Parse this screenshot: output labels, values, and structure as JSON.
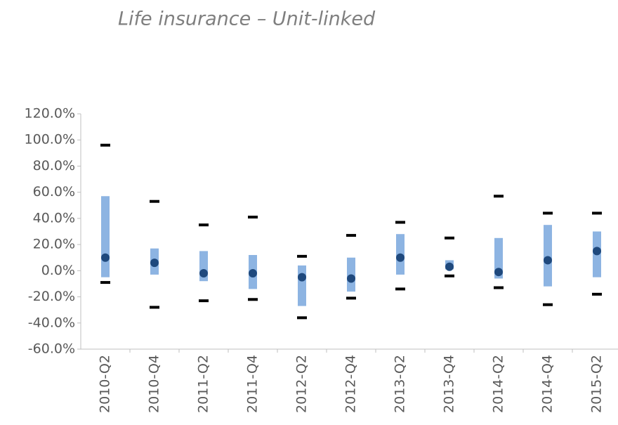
{
  "chart_data": {
    "type": "box",
    "title": "Life insurance – Unit-linked",
    "categories": [
      "2010-Q2",
      "2010-Q4",
      "2011-Q2",
      "2011-Q4",
      "2012-Q2",
      "2012-Q4",
      "2013-Q2",
      "2013-Q4",
      "2014-Q2",
      "2014-Q4",
      "2015-Q2"
    ],
    "max": [
      96,
      53,
      35,
      41,
      11,
      27,
      37,
      25,
      57,
      44,
      44
    ],
    "upper": [
      57,
      17,
      15,
      12,
      4,
      10,
      28,
      8,
      25,
      35,
      30
    ],
    "lower": [
      -5,
      -3,
      -8,
      -14,
      -27,
      -16,
      -3,
      1,
      -6,
      -12,
      -5
    ],
    "min": [
      -9,
      -28,
      -23,
      -22,
      -36,
      -21,
      -14,
      -4,
      -13,
      -26,
      -18
    ],
    "median": [
      10,
      6,
      -2,
      -2,
      -5,
      -6,
      10,
      3,
      -1,
      8,
      15
    ],
    "box_color": "#8db4e2",
    "median_color": "#1f497d",
    "whisker_color": "#000000",
    "ylim": [
      -60,
      120
    ],
    "yticks": [
      {
        "value": -60,
        "label": "-60.0%"
      },
      {
        "value": -40,
        "label": "-40.0%"
      },
      {
        "value": -20,
        "label": "-20.0%"
      },
      {
        "value": 0,
        "label": "0.0%"
      },
      {
        "value": 20,
        "label": "20.0%"
      },
      {
        "value": 40,
        "label": "40.0%"
      },
      {
        "value": 60,
        "label": "60.0%"
      },
      {
        "value": 80,
        "label": "80.0%"
      },
      {
        "value": 100,
        "label": "100.0%"
      },
      {
        "value": 120,
        "label": "120.0%"
      }
    ],
    "grid": false
  }
}
